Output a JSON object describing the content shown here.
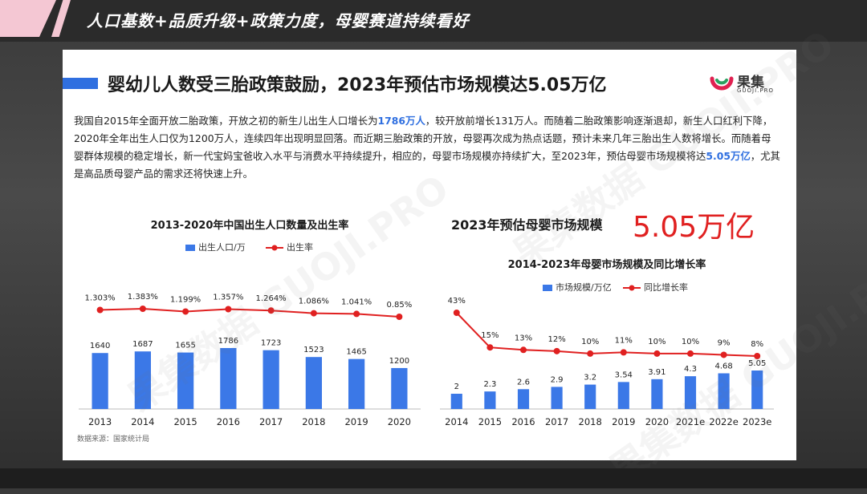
{
  "banner": {
    "title": "人口基数+品质升级+政策力度，母婴赛道持续看好"
  },
  "slide": {
    "heading": "婴幼儿人数受三胎政策鼓励，2023年预估市场规模达5.05万亿",
    "logo": {
      "name": "果集",
      "sub": "GUOJI.PRO"
    },
    "paragraph": {
      "p1": "我国自2015年全面开放二胎政策，开放之初的新生儿出生人口增长为",
      "h1": "1786万人",
      "p2": "，较开放前增长131万人。而随着二胎政策影响逐渐退却，新生人口红利下降，2020年全年出生人口仅为1200万人，连续四年出现明显回落。而近期三胎政策的开放，母婴再次成为热点话题，预计未来几年三胎出生人数将增长。而随着母婴群体规模的稳定增长，新一代宝妈宝爸收入水平与消费水平持续提升，相应的，母婴市场规模亦持续扩大，至2023年，预估母婴市场规模将达",
      "h2": "5.05万亿",
      "p3": "，尤其是高品质母婴产品的需求还将快速上升。"
    },
    "source": "数据来源：国家统计局",
    "highlight": {
      "title": "2023年预估母婴市场规模",
      "value": "5.05万亿"
    },
    "watermark": "果集数据 GUOJI.PRO"
  },
  "chart_data": [
    {
      "type": "bar",
      "title": "2013-2020年中国出生人口数量及出生率",
      "categories": [
        "2013",
        "2014",
        "2015",
        "2016",
        "2017",
        "2018",
        "2019",
        "2020"
      ],
      "series": [
        {
          "name": "出生人口/万",
          "type": "bar",
          "values": [
            1640,
            1687,
            1655,
            1786,
            1723,
            1523,
            1465,
            1200
          ],
          "labels": [
            "1640",
            "1687",
            "1655",
            "1786",
            "1723",
            "1523",
            "1465",
            "1200"
          ]
        },
        {
          "name": "出生率",
          "type": "line",
          "values": [
            1.303,
            1.383,
            1.199,
            1.357,
            1.264,
            1.086,
            1.041,
            0.85
          ],
          "labels": [
            "1.303%",
            "1.383%",
            "1.199%",
            "1.357%",
            "1.264%",
            "1.086%",
            "1.041%",
            "0.85%"
          ]
        }
      ],
      "legend": "top-center",
      "colors": {
        "bar": "#3b78e7",
        "line": "#e02020"
      }
    },
    {
      "type": "bar",
      "title": "2014-2023年母婴市场规模及同比增长率",
      "categories": [
        "2014",
        "2015",
        "2016",
        "2017",
        "2018",
        "2019",
        "2020",
        "2021e",
        "2022e",
        "2023e"
      ],
      "series": [
        {
          "name": "市场规模/万亿",
          "type": "bar",
          "values": [
            2,
            2.3,
            2.6,
            2.9,
            3.2,
            3.54,
            3.91,
            4.3,
            4.68,
            5.05
          ],
          "labels": [
            "2",
            "2.3",
            "2.6",
            "2.9",
            "3.2",
            "3.54",
            "3.91",
            "4.3",
            "4.68",
            "5.05"
          ]
        },
        {
          "name": "同比增长率",
          "type": "line",
          "values": [
            43,
            15,
            13,
            12,
            10,
            11,
            10,
            10,
            9,
            8
          ],
          "labels": [
            "43%",
            "15%",
            "13%",
            "12%",
            "10%",
            "11%",
            "10%",
            "10%",
            "9%",
            "8%"
          ]
        }
      ],
      "legend": "top-center",
      "colors": {
        "bar": "#3b78e7",
        "line": "#e02020"
      }
    }
  ]
}
